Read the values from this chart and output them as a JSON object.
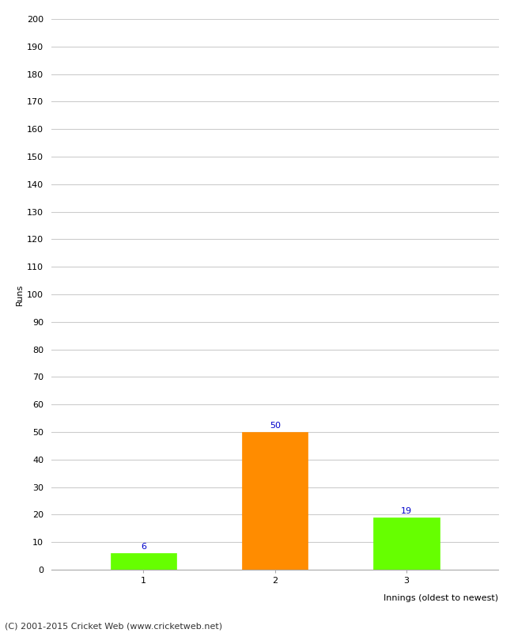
{
  "categories": [
    "1",
    "2",
    "3"
  ],
  "values": [
    6,
    50,
    19
  ],
  "bar_colors": [
    "#66ff00",
    "#ff8c00",
    "#66ff00"
  ],
  "ylabel": "Runs",
  "xlabel": "Innings (oldest to newest)",
  "ylim": [
    0,
    200
  ],
  "yticks": [
    0,
    10,
    20,
    30,
    40,
    50,
    60,
    70,
    80,
    90,
    100,
    110,
    120,
    130,
    140,
    150,
    160,
    170,
    180,
    190,
    200
  ],
  "label_color": "#0000cc",
  "footer": "(C) 2001-2015 Cricket Web (www.cricketweb.net)",
  "background_color": "#ffffff",
  "grid_color": "#cccccc"
}
